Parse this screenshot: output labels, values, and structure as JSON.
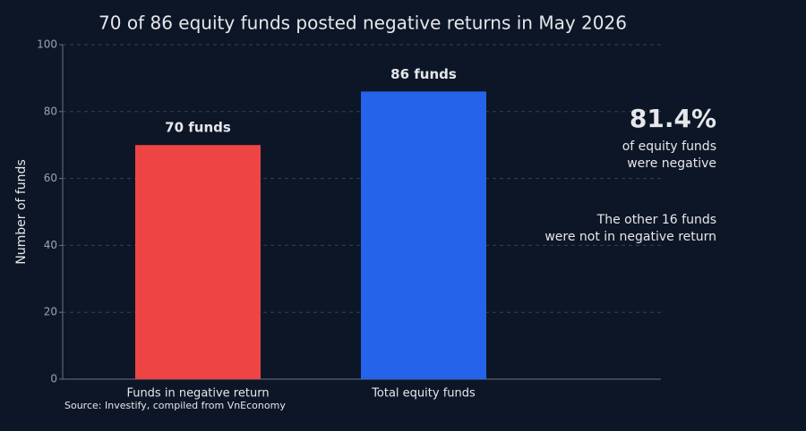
{
  "chart_data": {
    "type": "bar",
    "title": "70 of 86 equity funds posted negative returns in May 2026",
    "y_label": "Number of funds",
    "categories": [
      "Funds in negative return",
      "Total equity funds"
    ],
    "values": [
      70,
      86
    ],
    "value_labels": [
      "70 funds",
      "86 funds"
    ],
    "colors": [
      "#ef4444",
      "#2563eb"
    ],
    "ylim": [
      0,
      100
    ],
    "yticks": [
      0,
      20,
      40,
      60,
      80,
      100
    ],
    "grid": true,
    "annotations": [
      {
        "lines": [
          "81.4%"
        ],
        "color": "#ffffff"
      },
      {
        "lines": [
          "of equity funds",
          "were negative"
        ],
        "color": "#9ca3af"
      },
      {
        "lines": [
          "The other 16 funds",
          "were not in negative return"
        ],
        "color": "#22c55e"
      }
    ],
    "source": "Source: Investify, compiled from VnEconomy"
  }
}
